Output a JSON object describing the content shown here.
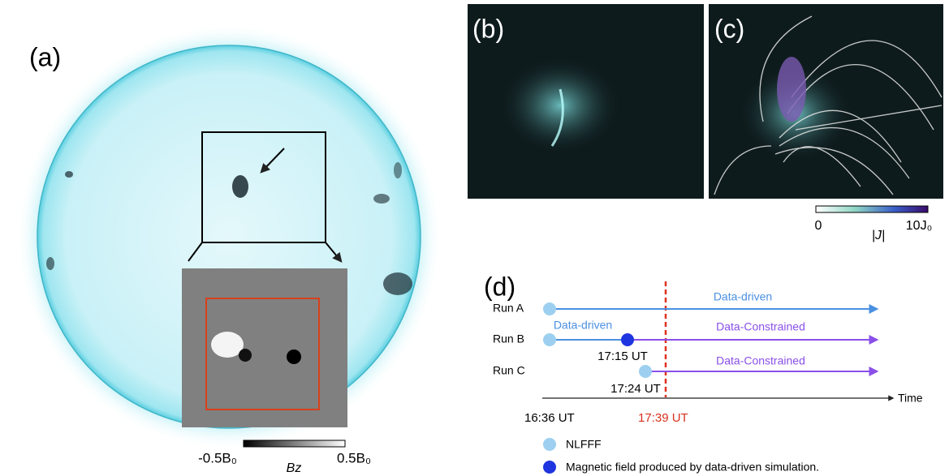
{
  "panels": {
    "a": "(a)",
    "b": "(b)",
    "c": "(c)",
    "d": "(d)"
  },
  "bz_colorbar": {
    "min": "-0.5B₀",
    "max": "0.5B₀",
    "label": "Bz"
  },
  "j_colorbar": {
    "min": "0",
    "max": "10J₀",
    "label": "|J|"
  },
  "timeline": {
    "runs": [
      {
        "label": "Run A",
        "phases": [
          "Data-driven"
        ]
      },
      {
        "label": "Run B",
        "phases": [
          "Data-driven",
          "Data-Constrained"
        ],
        "switch_time": "17:15 UT"
      },
      {
        "label": "Run C",
        "phases": [
          "Data-Constrained"
        ],
        "start_time": "17:24 UT"
      }
    ],
    "axis_label": "Time",
    "start_time": "16:36 UT",
    "event_time": "17:39 UT"
  },
  "legend": [
    "NLFFF",
    "Magnetic field produced by data-driven simulation."
  ]
}
